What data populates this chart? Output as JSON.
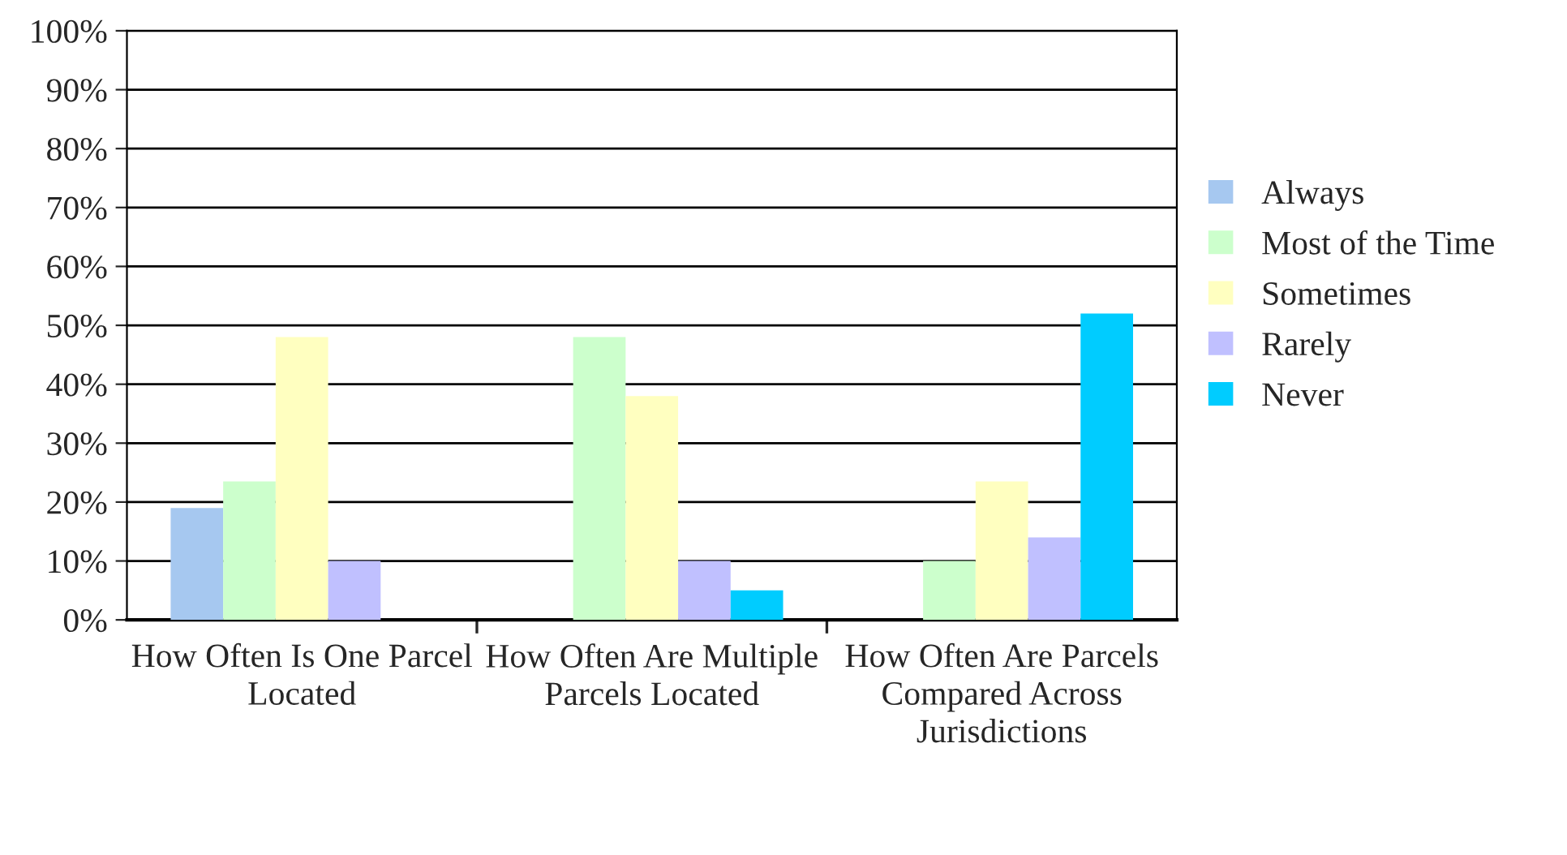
{
  "chart_data": {
    "type": "bar",
    "categories": [
      "How Often Is One Parcel Located",
      "How Often Are Multiple Parcels Located",
      "How Often Are Parcels Compared Across Jurisdictions"
    ],
    "series": [
      {
        "name": "Always",
        "color": "#a6c8f0",
        "values": [
          19,
          null,
          null
        ]
      },
      {
        "name": "Most of the Time",
        "color": "#ccffcc",
        "values": [
          23.5,
          48,
          10
        ]
      },
      {
        "name": "Sometimes",
        "color": "#ffffc0",
        "values": [
          48,
          38,
          23.5
        ]
      },
      {
        "name": "Rarely",
        "color": "#c0c0ff",
        "values": [
          10,
          10,
          14
        ]
      },
      {
        "name": "Never",
        "color": "#00ccff",
        "values": [
          null,
          5,
          52
        ]
      }
    ],
    "ylim": [
      0,
      100
    ],
    "yticks": [
      {
        "value": 0,
        "label": "0%"
      },
      {
        "value": 10,
        "label": "10%"
      },
      {
        "value": 20,
        "label": "20%"
      },
      {
        "value": 30,
        "label": "30%"
      },
      {
        "value": 40,
        "label": "40%"
      },
      {
        "value": 50,
        "label": "50%"
      },
      {
        "value": 60,
        "label": "60%"
      },
      {
        "value": 70,
        "label": "70%"
      },
      {
        "value": 80,
        "label": "80%"
      },
      {
        "value": 90,
        "label": "90%"
      },
      {
        "value": 100,
        "label": "100%"
      }
    ],
    "grid": "y",
    "legend": "right"
  }
}
